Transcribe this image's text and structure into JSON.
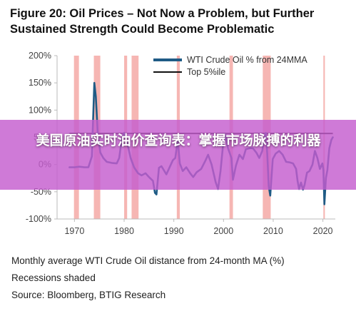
{
  "title": "Figure 20: Oil Prices – Not Now a Problem, but Further Sustained Strength Could Become Problematic",
  "banner_text": "美国原油实时油价查询表：掌握市场脉搏的利器",
  "footnotes": {
    "line1": "Monthly average WTI Crude Oil distance from 24-month MA (%)",
    "line2": "Recessions shaded",
    "line3": "Source: Bloomberg, BTIG Research"
  },
  "chart_data": {
    "type": "line",
    "title": "",
    "xlabel": "",
    "ylabel": "",
    "xlim": [
      1966.5,
      2022.5
    ],
    "ylim": [
      -100,
      200
    ],
    "x_ticks": [
      1970,
      1980,
      1990,
      2000,
      2010,
      2020
    ],
    "y_ticks": [
      -100,
      -50,
      0,
      50,
      100,
      150,
      200
    ],
    "y_tick_labels": [
      "-100%",
      "-50%",
      "0%",
      "50%",
      "100%",
      "150%",
      "200%"
    ],
    "grid": false,
    "legend": "top-right",
    "colors": {
      "wti": "#1f5b85",
      "top5": "#111111",
      "recession": "#f4a9a6"
    },
    "recessions": [
      [
        1969.9,
        1970.9
      ],
      [
        1973.9,
        1975.2
      ],
      [
        1980.0,
        1980.6
      ],
      [
        1981.5,
        1982.9
      ],
      [
        1990.6,
        1991.2
      ],
      [
        2001.2,
        2001.9
      ],
      [
        2007.9,
        2009.5
      ],
      [
        2020.1,
        2020.4
      ]
    ],
    "series": [
      {
        "name": "WTI Crude Oil % from 24MMA",
        "x": [
          1969,
          1970,
          1971,
          1972,
          1972.8,
          1973.5,
          1974.0,
          1974.3,
          1974.7,
          1975.2,
          1975.8,
          1976.5,
          1977.5,
          1978.5,
          1979.0,
          1979.5,
          1980.0,
          1980.7,
          1981.3,
          1982.0,
          1982.8,
          1983.5,
          1984.3,
          1985.0,
          1985.8,
          1986.2,
          1986.5,
          1987.0,
          1987.5,
          1988.5,
          1989.3,
          1989.8,
          1990.3,
          1990.8,
          1991.2,
          1991.8,
          1992.5,
          1993.3,
          1993.9,
          1994.6,
          1995.5,
          1996.4,
          1996.9,
          1997.6,
          1998.4,
          1998.9,
          1999.4,
          1999.9,
          2000.4,
          2000.9,
          2001.6,
          2001.9,
          2002.5,
          2003.2,
          2003.9,
          2004.5,
          2005.2,
          2005.9,
          2006.6,
          2007.2,
          2007.8,
          2008.3,
          2008.5,
          2008.8,
          2009.1,
          2009.4,
          2009.9,
          2010.5,
          2011.2,
          2011.9,
          2012.6,
          2013.3,
          2014.0,
          2014.6,
          2014.9,
          2015.2,
          2015.6,
          2016.0,
          2016.3,
          2016.8,
          2017.3,
          2017.9,
          2018.4,
          2018.9,
          2019.4,
          2019.9,
          2020.1,
          2020.3,
          2020.6,
          2020.9,
          2021.3,
          2021.7,
          2022.0
        ],
        "values": [
          -5,
          -5,
          -4,
          -5,
          -5,
          15,
          150,
          125,
          55,
          22,
          12,
          5,
          3,
          2,
          12,
          45,
          58,
          36,
          12,
          -5,
          -16,
          -20,
          -16,
          -23,
          -30,
          -52,
          -55,
          -6,
          -3,
          -18,
          -2,
          8,
          12,
          45,
          2,
          -12,
          -5,
          -16,
          -23,
          -14,
          -8,
          8,
          18,
          0,
          -32,
          -45,
          -12,
          35,
          55,
          30,
          12,
          -28,
          -2,
          18,
          10,
          28,
          30,
          30,
          22,
          12,
          25,
          52,
          58,
          20,
          -40,
          -57,
          10,
          20,
          25,
          18,
          5,
          4,
          2,
          -8,
          -30,
          -45,
          -33,
          -46,
          -38,
          -15,
          -12,
          0,
          25,
          12,
          -8,
          2,
          -10,
          -73,
          -25,
          -10,
          30,
          45,
          50
        ]
      },
      {
        "name": "Top 5%ile",
        "x": [
          1969,
          2022
        ],
        "values": [
          57,
          57
        ]
      }
    ]
  }
}
